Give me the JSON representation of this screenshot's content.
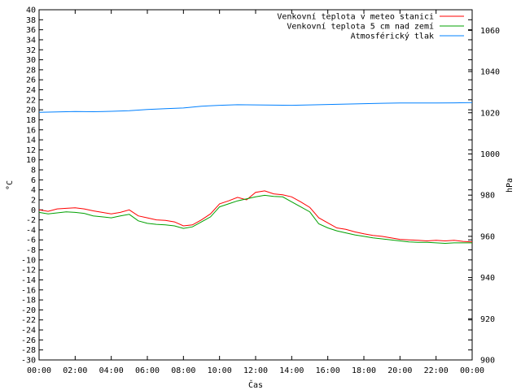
{
  "chart_data": {
    "type": "line",
    "xlabel": "Čas",
    "ylabel": "°C",
    "y2label": "hPa",
    "xlim": [
      0,
      24
    ],
    "ylim": [
      -30,
      40
    ],
    "y2lim": [
      900,
      1070
    ],
    "x_ticks": [
      "00:00",
      "02:00",
      "04:00",
      "06:00",
      "08:00",
      "10:00",
      "12:00",
      "14:00",
      "16:00",
      "18:00",
      "20:00",
      "22:00",
      "00:00"
    ],
    "y_ticks": [
      40,
      38,
      36,
      34,
      32,
      30,
      28,
      26,
      24,
      22,
      20,
      18,
      16,
      14,
      12,
      10,
      8,
      6,
      4,
      2,
      0,
      -2,
      -4,
      -6,
      -8,
      -10,
      -12,
      -14,
      -16,
      -18,
      -20,
      -22,
      -24,
      -26,
      -28,
      -30
    ],
    "y2_ticks": [
      1060,
      1040,
      1020,
      1000,
      980,
      960,
      940,
      920,
      900
    ],
    "legend_position": "top-right",
    "grid": false,
    "series": [
      {
        "name": "Venkovní teplota v meteo stanici",
        "color": "#ff0000",
        "axis": "left",
        "x": [
          0,
          0.5,
          1,
          1.5,
          2,
          2.5,
          3,
          3.5,
          4,
          4.5,
          5,
          5.5,
          6,
          6.5,
          7,
          7.5,
          8,
          8.5,
          9,
          9.5,
          10,
          10.5,
          11,
          11.5,
          12,
          12.5,
          13,
          13.5,
          14,
          14.5,
          15,
          15.5,
          16,
          16.5,
          17,
          17.5,
          18,
          18.5,
          19,
          19.5,
          20,
          20.5,
          21,
          21.5,
          22,
          22.5,
          23,
          23.5,
          24
        ],
        "y": [
          0,
          -0.3,
          0.2,
          0.3,
          0.4,
          0.2,
          -0.2,
          -0.5,
          -0.8,
          -0.5,
          0,
          -1.2,
          -1.6,
          -2.0,
          -2.1,
          -2.4,
          -3.2,
          -3.0,
          -2.0,
          -0.8,
          1.2,
          1.8,
          2.5,
          2.0,
          3.5,
          3.8,
          3.2,
          3.0,
          2.6,
          1.6,
          0.5,
          -1.6,
          -2.6,
          -3.6,
          -3.9,
          -4.4,
          -4.8,
          -5.1,
          -5.3,
          -5.6,
          -5.9,
          -6.0,
          -6.1,
          -6.2,
          -6.1,
          -6.2,
          -6.1,
          -6.3,
          -6.4
        ]
      },
      {
        "name": "Venkovní teplota 5 cm nad zemí",
        "color": "#00a000",
        "axis": "left",
        "x": [
          0,
          0.5,
          1,
          1.5,
          2,
          2.5,
          3,
          3.5,
          4,
          4.5,
          5,
          5.5,
          6,
          6.5,
          7,
          7.5,
          8,
          8.5,
          9,
          9.5,
          10,
          10.5,
          11,
          11.5,
          12,
          12.5,
          13,
          13.5,
          14,
          14.5,
          15,
          15.5,
          16,
          16.5,
          17,
          17.5,
          18,
          18.5,
          19,
          19.5,
          20,
          20.5,
          21,
          21.5,
          22,
          22.5,
          23,
          23.5,
          24
        ],
        "y": [
          -0.5,
          -0.8,
          -0.6,
          -0.4,
          -0.5,
          -0.7,
          -1.2,
          -1.4,
          -1.6,
          -1.2,
          -0.9,
          -2.2,
          -2.7,
          -2.9,
          -3.0,
          -3.2,
          -3.7,
          -3.4,
          -2.4,
          -1.4,
          0.6,
          1.2,
          1.8,
          2.2,
          2.6,
          2.9,
          2.7,
          2.6,
          1.6,
          0.6,
          -0.4,
          -2.8,
          -3.6,
          -4.2,
          -4.6,
          -5.0,
          -5.3,
          -5.6,
          -5.8,
          -6.0,
          -6.2,
          -6.4,
          -6.5,
          -6.5,
          -6.6,
          -6.7,
          -6.6,
          -6.6,
          -6.6
        ]
      },
      {
        "name": "Atmosférický tlak",
        "color": "#0080ff",
        "axis": "right",
        "x": [
          0,
          1,
          2,
          3,
          4,
          5,
          6,
          7,
          8,
          9,
          10,
          11,
          12,
          13,
          14,
          15,
          16,
          17,
          18,
          19,
          20,
          21,
          22,
          23,
          24
        ],
        "y": [
          1020.2,
          1020.4,
          1020.6,
          1020.5,
          1020.7,
          1021.0,
          1021.6,
          1022.0,
          1022.3,
          1023.2,
          1023.6,
          1023.9,
          1023.8,
          1023.7,
          1023.6,
          1023.8,
          1024.0,
          1024.2,
          1024.4,
          1024.6,
          1024.7,
          1024.7,
          1024.7,
          1024.8,
          1024.9
        ]
      }
    ]
  }
}
